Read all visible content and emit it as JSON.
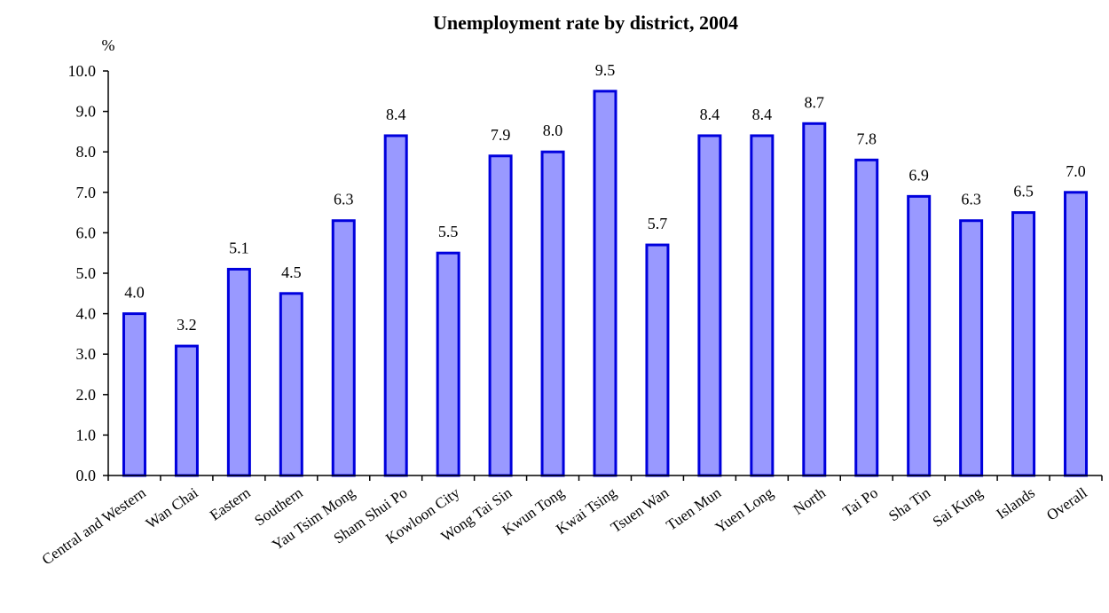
{
  "chart_data": {
    "type": "bar",
    "title": "Unemployment rate by district, 2004",
    "ylabel": "%",
    "xlabel": "",
    "ylim": [
      0,
      10
    ],
    "yticks": [
      "0.0",
      "1.0",
      "2.0",
      "3.0",
      "4.0",
      "5.0",
      "6.0",
      "7.0",
      "8.0",
      "9.0",
      "10.0"
    ],
    "categories": [
      "Central and Western",
      "Wan Chai",
      "Eastern",
      "Southern",
      "Yau Tsim Mong",
      "Sham Shui Po",
      "Kowloon City",
      "Wong Tai Sin",
      "Kwun Tong",
      "Kwai Tsing",
      "Tsuen Wan",
      "Tuen Mun",
      "Yuen Long",
      "North",
      "Tai Po",
      "Sha Tin",
      "Sai Kung",
      "Islands",
      "Overall"
    ],
    "values": [
      4.0,
      3.2,
      5.1,
      4.5,
      6.3,
      8.4,
      5.5,
      7.9,
      8.0,
      9.5,
      5.7,
      8.4,
      8.4,
      8.7,
      7.8,
      6.9,
      6.3,
      6.5,
      7.0
    ],
    "value_labels": [
      "4.0",
      "3.2",
      "5.1",
      "4.5",
      "6.3",
      "8.4",
      "5.5",
      "7.9",
      "8.0",
      "9.5",
      "5.7",
      "8.4",
      "8.4",
      "8.7",
      "7.8",
      "6.9",
      "6.3",
      "6.5",
      "7.0"
    ],
    "grid": false,
    "legend": "none",
    "colors": {
      "bar_fill": "#9999ff",
      "bar_stroke": "#0000dd",
      "axis": "#000000"
    }
  }
}
